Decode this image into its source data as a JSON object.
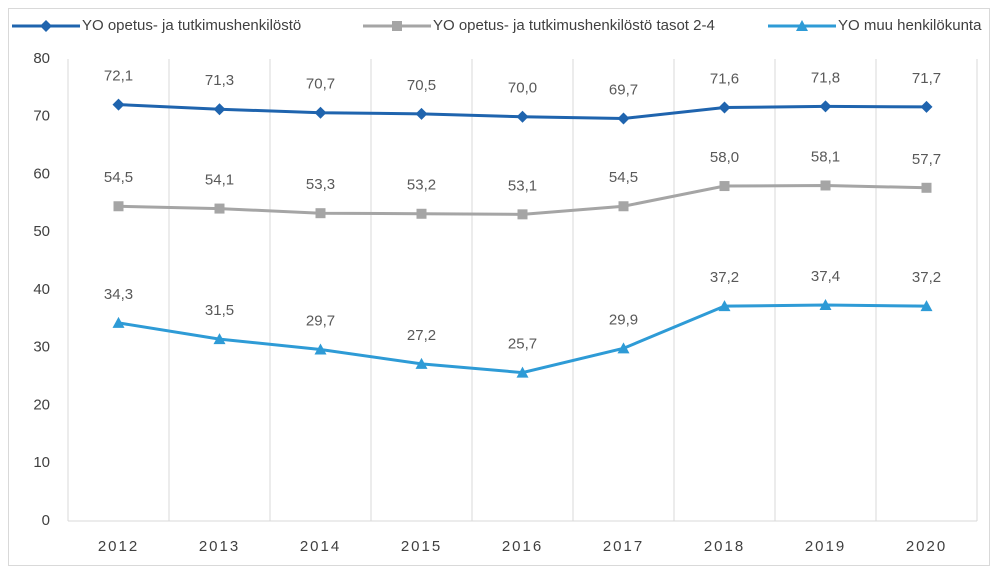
{
  "chart_data": {
    "type": "line",
    "categories": [
      "2012",
      "2013",
      "2014",
      "2015",
      "2016",
      "2017",
      "2018",
      "2019",
      "2020"
    ],
    "series": [
      {
        "name": "YO opetus- ja tutkimushenkilöstö",
        "color": "#1f64ae",
        "marker": "diamond",
        "values": [
          72.1,
          71.3,
          70.7,
          70.5,
          70.0,
          69.7,
          71.6,
          71.8,
          71.7
        ],
        "value_labels": [
          "72,1",
          "71,3",
          "70,7",
          "70,5",
          "70,0",
          "69,7",
          "71,6",
          "71,8",
          "71,7"
        ]
      },
      {
        "name": "YO opetus- ja tutkimushenkilöstö tasot 2-4",
        "color": "#a5a5a5",
        "marker": "square",
        "values": [
          54.5,
          54.1,
          53.3,
          53.2,
          53.1,
          54.5,
          58.0,
          58.1,
          57.7
        ],
        "value_labels": [
          "54,5",
          "54,1",
          "53,3",
          "53,2",
          "53,1",
          "54,5",
          "58,0",
          "58,1",
          "57,7"
        ]
      },
      {
        "name": "YO muu henkilökunta",
        "color": "#2e9bd6",
        "marker": "triangle",
        "values": [
          34.3,
          31.5,
          29.7,
          27.2,
          25.7,
          29.9,
          37.2,
          37.4,
          37.2
        ],
        "value_labels": [
          "34,3",
          "31,5",
          "29,7",
          "27,2",
          "25,7",
          "29,9",
          "37,2",
          "37,4",
          "37,2"
        ]
      }
    ],
    "ylim": [
      0,
      80
    ],
    "yticks": [
      0,
      10,
      20,
      30,
      40,
      50,
      60,
      70,
      80
    ],
    "grid": true,
    "legend": "top"
  }
}
